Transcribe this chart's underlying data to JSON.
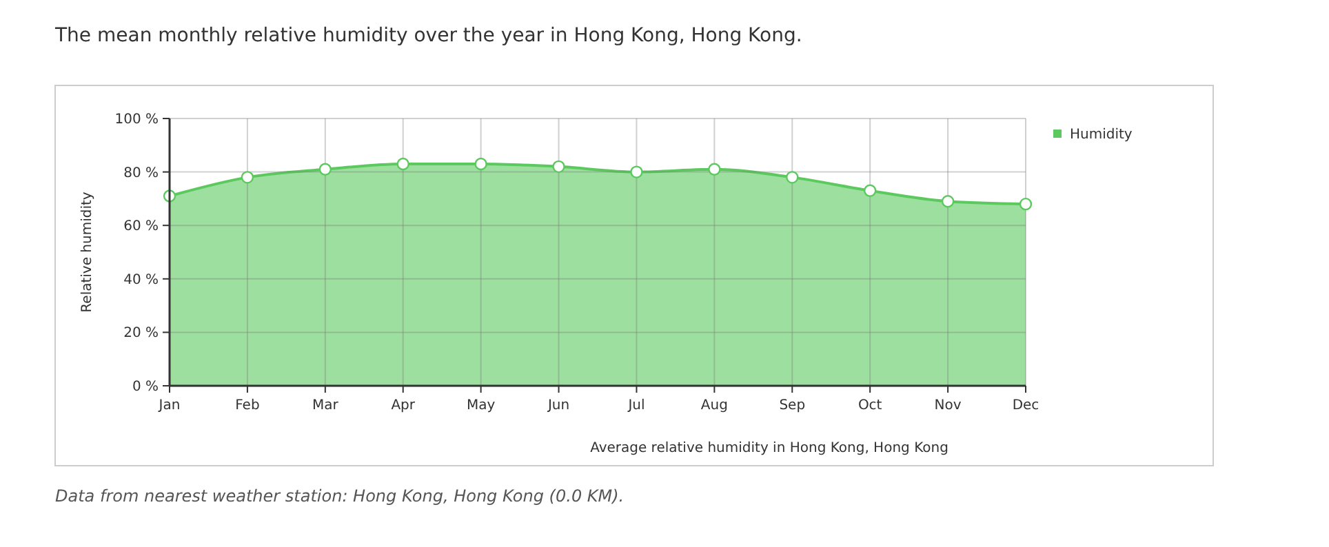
{
  "chart_data": {
    "type": "area",
    "title": "The mean monthly relative humidity over the year in Hong Kong, Hong Kong.",
    "ylabel": "Relative humidity",
    "categories": [
      "Jan",
      "Feb",
      "Mar",
      "Apr",
      "May",
      "Jun",
      "Jul",
      "Aug",
      "Sep",
      "Oct",
      "Nov",
      "Dec"
    ],
    "series": [
      {
        "name": "Humidity",
        "color": "#5cc95f",
        "values": [
          71,
          78,
          81,
          83,
          83,
          82,
          80,
          81,
          78,
          73,
          69,
          68
        ]
      }
    ],
    "ylim": [
      0,
      100
    ],
    "yticks": [
      {
        "value": 0,
        "label": "0 %"
      },
      {
        "value": 20,
        "label": "20 %"
      },
      {
        "value": 40,
        "label": "40 %"
      },
      {
        "value": 60,
        "label": "60 %"
      },
      {
        "value": 80,
        "label": "80 %"
      },
      {
        "value": 100,
        "label": "100 %"
      }
    ],
    "grid": true,
    "legend": "top right",
    "marker": "circle",
    "annotations": [
      "Average relative humidity in Hong Kong, Hong Kong",
      "Data from nearest weather station: Hong Kong, Hong Kong (0.0 KM)."
    ]
  }
}
